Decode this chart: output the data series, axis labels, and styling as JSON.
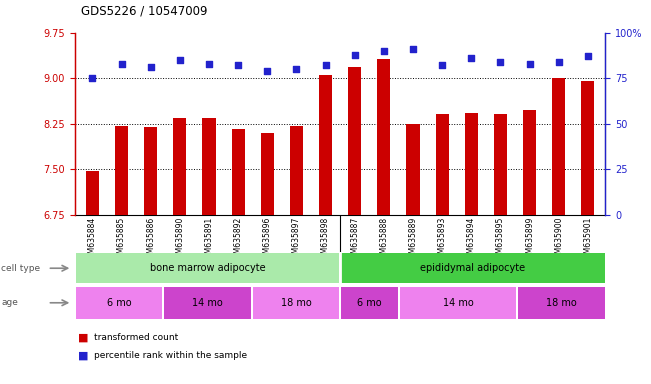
{
  "title": "GDS5226 / 10547009",
  "samples": [
    "GSM635884",
    "GSM635885",
    "GSM635886",
    "GSM635890",
    "GSM635891",
    "GSM635892",
    "GSM635896",
    "GSM635897",
    "GSM635898",
    "GSM635887",
    "GSM635888",
    "GSM635889",
    "GSM635893",
    "GSM635894",
    "GSM635895",
    "GSM635899",
    "GSM635900",
    "GSM635901"
  ],
  "transformed_counts": [
    7.48,
    8.22,
    8.2,
    8.35,
    8.34,
    8.17,
    8.1,
    8.21,
    9.05,
    9.19,
    9.32,
    8.25,
    8.41,
    8.43,
    8.41,
    8.47,
    9.0,
    8.95
  ],
  "blue_values_pct": [
    75,
    83,
    81,
    85,
    83,
    82,
    79,
    80,
    82,
    88,
    90,
    91,
    82,
    86,
    84,
    83,
    84,
    87
  ],
  "ylim_left": [
    6.75,
    9.75
  ],
  "ylim_right": [
    0,
    100
  ],
  "yticks_left": [
    6.75,
    7.5,
    8.25,
    9.0,
    9.75
  ],
  "yticks_right": [
    0,
    25,
    50,
    75,
    100
  ],
  "bar_color": "#cc0000",
  "blue_color": "#2222cc",
  "bar_bottom": 6.75,
  "cell_type_groups": [
    {
      "label": "bone marrow adipocyte",
      "start": 0,
      "end": 9,
      "color": "#aaeaaa"
    },
    {
      "label": "epididymal adipocyte",
      "start": 9,
      "end": 18,
      "color": "#44cc44"
    }
  ],
  "age_groups": [
    {
      "label": "6 mo",
      "start": 0,
      "end": 3,
      "color": "#ee82ee"
    },
    {
      "label": "14 mo",
      "start": 3,
      "end": 6,
      "color": "#cc44cc"
    },
    {
      "label": "18 mo",
      "start": 6,
      "end": 9,
      "color": "#ee82ee"
    },
    {
      "label": "6 mo",
      "start": 9,
      "end": 11,
      "color": "#cc44cc"
    },
    {
      "label": "14 mo",
      "start": 11,
      "end": 15,
      "color": "#ee82ee"
    },
    {
      "label": "18 mo",
      "start": 15,
      "end": 18,
      "color": "#cc44cc"
    }
  ]
}
